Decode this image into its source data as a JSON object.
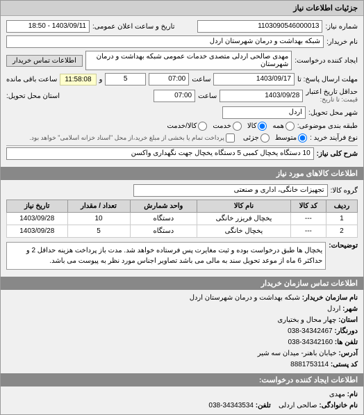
{
  "header": {
    "title": "جزئیات اطلاعات نیاز"
  },
  "info": {
    "request_no_label": "شماره نیاز:",
    "request_no": "1103090546000013",
    "public_announce_label": "تاریخ و ساعت اعلان عمومی:",
    "public_announce": "1403/09/11 - 18:50",
    "buyer_label": "نام خریدار:",
    "buyer": "شبکه بهداشت و درمان شهرستان اردل",
    "creator_label": "ایجاد کننده درخواست:",
    "creator": "مهدی صالحی اردلی متصدی خدمات عمومی شبکه بهداشت و درمان شهرستان",
    "contact_btn": "اطلاعات تماس خریدار",
    "deadline_label": "مهلت ارسال پاسخ: تا",
    "deadline_date": "1403/09/17",
    "time_label": "ساعت",
    "deadline_time": "07:00",
    "remaining_label": "ساعت باقی مانده",
    "remaining_days": "5",
    "remaining_time": "11:58:08",
    "min_valid_label": "حداقل تاریخ اعتبار",
    "min_valid_sub": "قیمت: تا تاریخ:",
    "min_valid_date": "1403/09/28",
    "min_valid_time": "07:00",
    "delivery_province_label": "استان محل تحویل:",
    "delivery_city_label": "شهر محل تحویل:",
    "delivery_city": "اردل",
    "class_label": "طبقه بندی موضوعی:",
    "class_all": "همه",
    "class_goods": "کالا",
    "class_service": "خدمت",
    "class_item": "کالا/خدمت",
    "purchase_type_label": "نوع فرآیند خرید :",
    "type_medium": "متوسط",
    "type_partial": "جزئی",
    "payment_note": "پرداخت تمام یا بخشی از مبلغ خرید،از محل \"اسناد خزانه اسلامی\" خواهد بود.",
    "summary_label": "شرح کلی نیاز:",
    "summary": "10 دستگاه یخچال کمبی 5 دستگاه یخچال جهت نگهداری واکسن"
  },
  "goods_header": "اطلاعات کالاهای مورد نیاز",
  "group_label": "گروه کالا:",
  "group_value": "تجهیزات خانگی، اداری و صنعتی",
  "table": {
    "cols": [
      "ردیف",
      "کد کالا",
      "نام کالا",
      "واحد شمارش",
      "تعداد / مقدار",
      "تاریخ نیاز"
    ],
    "rows": [
      [
        "1",
        "---",
        "یخچال فریزر خانگی",
        "دستگاه",
        "10",
        "1403/09/28"
      ],
      [
        "2",
        "---",
        "یخچال خانگی",
        "دستگاه",
        "5",
        "1403/09/28"
      ]
    ]
  },
  "desc_label": "توضیحات:",
  "desc_text": "یخچال ها طبق درخواست بوده و ثبت مغایرت پس فرستاده خواهد شد. مدت باز پرداخت هزینه حداقل 2 و حداکثر 6 ماه از موعد تحویل سند به مالی می باشد تصاویر اجناس مورد نظر به پیوست می باشد.",
  "contact_header": "اطلاعات تماس سازمان خریدار",
  "contact": {
    "buyer_org_label": "نام سازمان خریدار:",
    "buyer_org": "شبکه بهداشت و درمان شهرستان اردل",
    "city_label": "شهر:",
    "city": "اردل",
    "province_label": "استان:",
    "province": "چهار محال و بختیاری",
    "fax_label": "دورنگار:",
    "fax": "34342467-038",
    "phone_label": "تلفن ها:",
    "phone": "34342160-038",
    "address_label": "آدرس:",
    "address": "خیابان باهنر- میدان سه شیر",
    "postal_label": "کد پستی:",
    "postal": "8881753114"
  },
  "creator_header": "اطلاعات ایجاد کننده درخواست:",
  "creator_info": {
    "name_label": "نام:",
    "name": "مهدی",
    "surname_label": "نام خانوادگی:",
    "surname": "صالحی اردلی",
    "phone_label": "تلفن:",
    "phone": "34343534-038"
  }
}
